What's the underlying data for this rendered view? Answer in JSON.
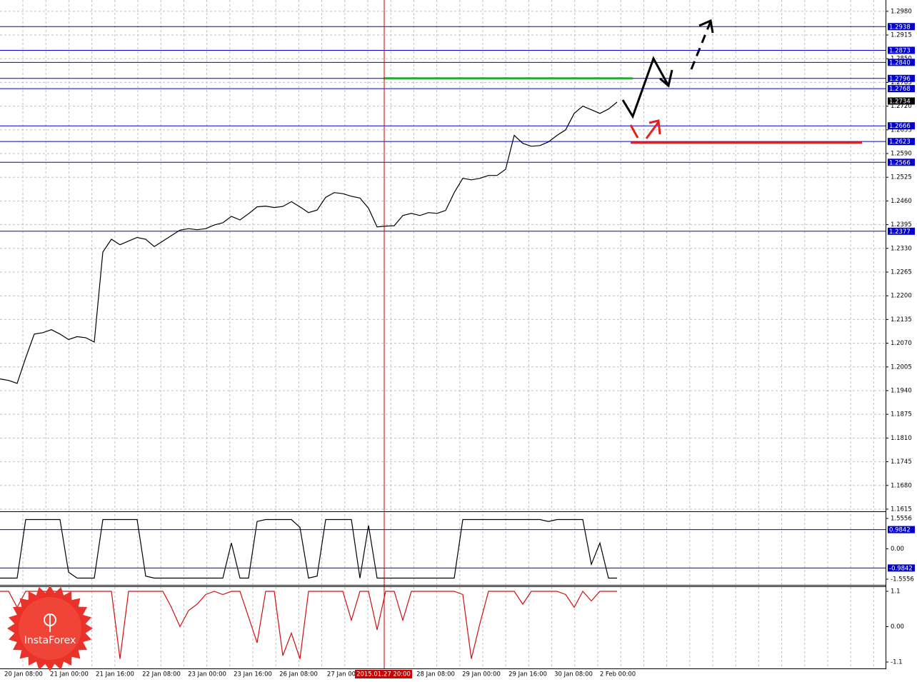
{
  "chart_data": [
    {
      "type": "line",
      "color": "#000000",
      "values": [
        1.1972,
        1.1968,
        1.196,
        1.203,
        1.2095,
        1.2099,
        1.2107,
        1.2095,
        1.208,
        1.2088,
        1.2085,
        1.2073,
        1.232,
        1.2355,
        1.234,
        1.235,
        1.236,
        1.2355,
        1.2335,
        1.235,
        1.2365,
        1.238,
        1.2384,
        1.2381,
        1.2384,
        1.2394,
        1.24,
        1.2418,
        1.2408,
        1.2425,
        1.2444,
        1.2446,
        1.2442,
        1.2445,
        1.2458,
        1.2444,
        1.2428,
        1.2435,
        1.247,
        1.2483,
        1.248,
        1.2473,
        1.2468,
        1.244,
        1.2389,
        1.2391,
        1.2392,
        1.242,
        1.2426,
        1.242,
        1.2428,
        1.2426,
        1.2434,
        1.2483,
        1.2522,
        1.2518,
        1.2522,
        1.253,
        1.253,
        1.2547,
        1.264,
        1.2618,
        1.261,
        1.2612,
        1.2622,
        1.264,
        1.2655,
        1.27,
        1.272,
        1.271,
        1.27,
        1.2712,
        1.2731
      ],
      "ylim": [
        1.1611,
        1.3011
      ],
      "yticks": [
        {
          "value": 1.298,
          "label": "1.2980"
        },
        {
          "value": 1.2915,
          "label": "1.2915"
        },
        {
          "value": 1.285,
          "label": "1.2850"
        },
        {
          "value": 1.2785,
          "label": "1.2785"
        },
        {
          "value": 1.272,
          "label": "1.2720"
        },
        {
          "value": 1.2655,
          "label": "1.2655"
        },
        {
          "value": 1.259,
          "label": "1.2590"
        },
        {
          "value": 1.2525,
          "label": "1.2525"
        },
        {
          "value": 1.246,
          "label": "1.2460"
        },
        {
          "value": 1.2395,
          "label": "1.2395"
        },
        {
          "value": 1.233,
          "label": "1.2330"
        },
        {
          "value": 1.2265,
          "label": "1.2265"
        },
        {
          "value": 1.22,
          "label": "1.2200"
        },
        {
          "value": 1.2135,
          "label": "1.2135"
        },
        {
          "value": 1.207,
          "label": "1.2070"
        },
        {
          "value": 1.2005,
          "label": "1.2005"
        },
        {
          "value": 1.194,
          "label": "1.1940"
        },
        {
          "value": 1.1875,
          "label": "1.1875"
        },
        {
          "value": 1.181,
          "label": "1.1810"
        },
        {
          "value": 1.1745,
          "label": "1.1745"
        },
        {
          "value": 1.168,
          "label": "1.1680"
        },
        {
          "value": 1.1615,
          "label": "1.1615"
        }
      ],
      "grid": true,
      "levels": [
        1.2938,
        1.2873,
        {
          "value": 1.284,
          "label": "1.2840"
        },
        1.2796,
        1.2768,
        1.2666,
        1.2623,
        1.2566,
        1.2377
      ],
      "level_color": "#0000d0",
      "current_price": 1.2734,
      "trend_lines": [
        {
          "value": 1.2796,
          "color": "#22aa33"
        },
        {
          "value": 1.262,
          "color": "#e8201c"
        }
      ]
    },
    {
      "type": "line",
      "color": "#000000",
      "values": [
        -1.5,
        -1.5,
        -1.5,
        1.5,
        1.5,
        1.5,
        1.5,
        1.5,
        -1.2,
        -1.5,
        -1.5,
        -1.5,
        1.5,
        1.5,
        1.5,
        1.5,
        1.5,
        -1.4,
        -1.5,
        -1.5,
        -1.5,
        -1.5,
        -1.5,
        -1.5,
        -1.5,
        -1.5,
        -1.5,
        0.3,
        -1.5,
        -1.5,
        1.4,
        1.5,
        1.5,
        1.5,
        1.5,
        1.1,
        -1.5,
        -1.4,
        1.5,
        1.5,
        1.5,
        1.5,
        -1.5,
        1.2,
        -1.5,
        -1.5,
        -1.5,
        -1.5,
        -1.5,
        -1.5,
        -1.5,
        -1.5,
        -1.5,
        -1.5,
        1.5,
        1.5,
        1.5,
        1.5,
        1.5,
        1.5,
        1.5,
        1.5,
        1.5,
        1.5,
        1.4,
        1.5,
        1.5,
        1.5,
        1.5,
        -0.8,
        0.3,
        -1.5,
        -1.5
      ],
      "ylim": [
        -1.812,
        1.848
      ],
      "yticks": [
        1.5556,
        {
          "value": 0,
          "label": "0.00"
        },
        -1.5556
      ],
      "levels": [
        0.9842,
        -0.9842
      ],
      "level_color": "#0000d0"
    },
    {
      "type": "line",
      "color": "#d01010",
      "values": [
        1.1,
        1.1,
        0.6,
        1.1,
        1.1,
        1.1,
        1.1,
        1.1,
        1.1,
        1.1,
        1.1,
        1.1,
        1.1,
        1.1,
        -1.0,
        1.1,
        1.1,
        1.1,
        1.1,
        1.1,
        0.6,
        0.0,
        0.5,
        0.7,
        1.0,
        1.1,
        1.0,
        1.1,
        1.1,
        0.3,
        -0.5,
        1.1,
        1.1,
        -0.9,
        -0.2,
        -1.0,
        1.1,
        1.1,
        1.1,
        1.1,
        1.1,
        0.2,
        1.1,
        1.1,
        -0.1,
        1.1,
        1.1,
        0.2,
        1.1,
        1.1,
        1.1,
        1.1,
        1.1,
        1.1,
        1.0,
        -1.0,
        0.1,
        1.1,
        1.1,
        1.1,
        1.1,
        0.7,
        1.1,
        1.1,
        1.1,
        1.1,
        1.0,
        0.6,
        1.1,
        0.8,
        1.1,
        1.1,
        1.1
      ],
      "ylim": [
        -1.278,
        1.233
      ],
      "yticks": [
        1.1,
        {
          "value": 0,
          "label": "0.00"
        },
        -1.1
      ]
    }
  ],
  "time_labels": [
    "20 Jan 08:00",
    "21 Jan 00:00",
    "21 Jan 16:00",
    "22 Jan 08:00",
    "23 Jan 00:00",
    "23 Jan 16:00",
    "26 Jan 08:00",
    "27 Jan 00",
    "2015.01.27 20:00",
    "28 Jan 08:00",
    "29 Jan 00:00",
    "29 Jan 16:00",
    "30 Jan 08:00",
    "2 Feb 00:00"
  ],
  "watermark": "InstaForex"
}
